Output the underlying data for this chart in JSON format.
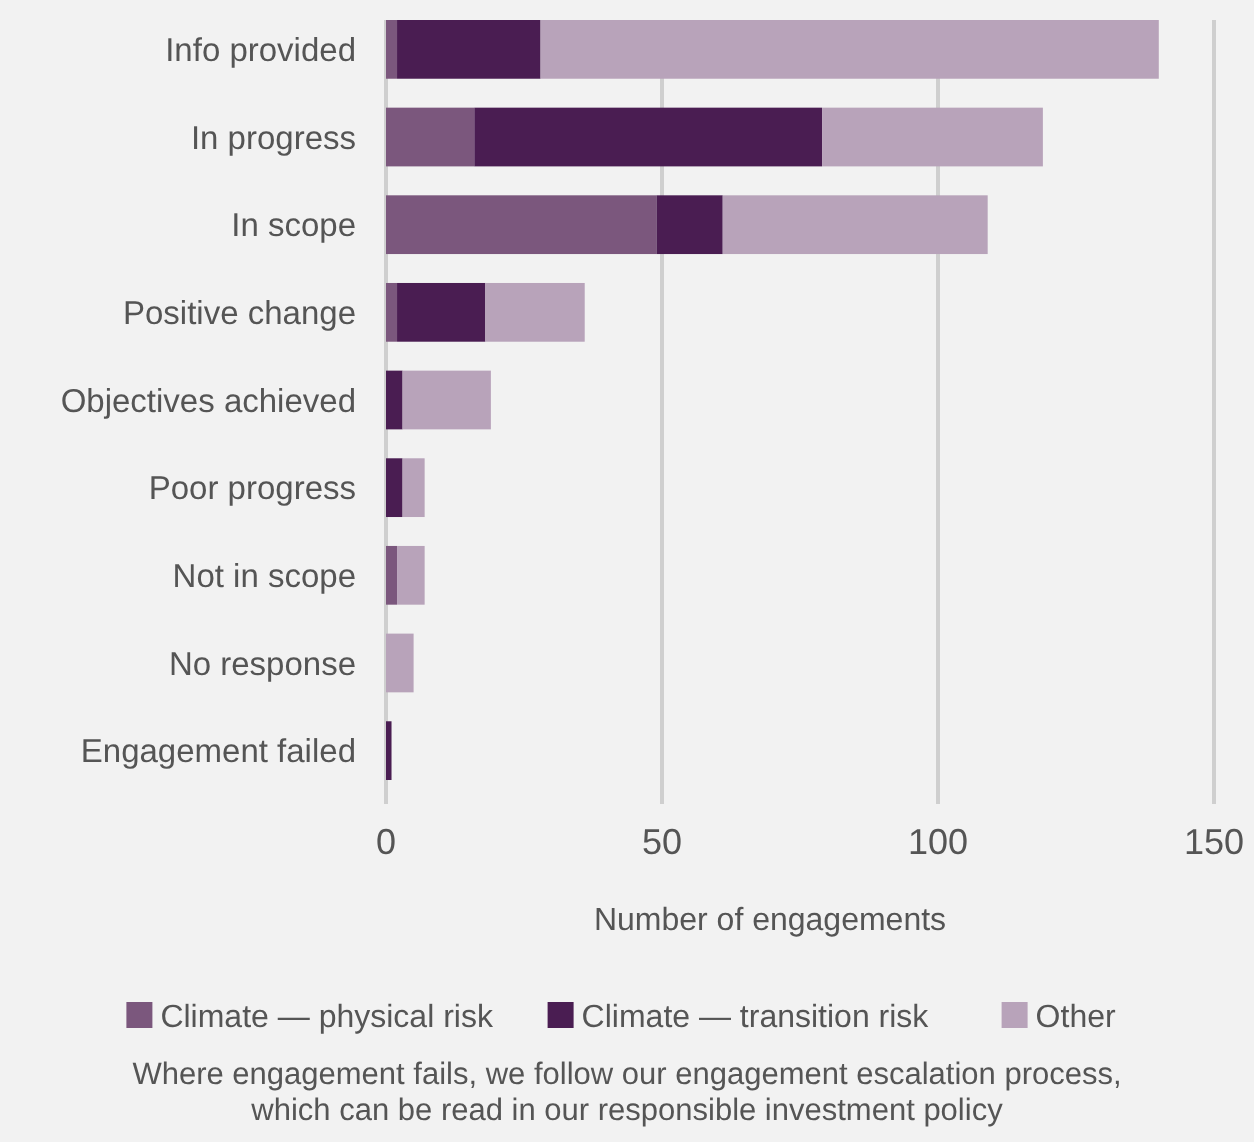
{
  "chart_data": {
    "type": "bar",
    "orientation": "horizontal",
    "stacked": true,
    "categories": [
      "Info provided",
      "In progress",
      "In scope",
      "Positive change",
      "Objectives achieved",
      "Poor progress",
      "Not in scope",
      "No response",
      "Engagement failed"
    ],
    "series": [
      {
        "name": "Climate — physical risk",
        "color": "#7b577d",
        "values": [
          2,
          16,
          49,
          2,
          0,
          0,
          2,
          0,
          0
        ]
      },
      {
        "name": "Climate — transition risk",
        "color": "#4a1d52",
        "values": [
          26,
          63,
          12,
          16,
          3,
          3,
          0,
          0,
          1
        ]
      },
      {
        "name": "Other",
        "color": "#b8a3ba",
        "values": [
          112,
          40,
          48,
          18,
          16,
          4,
          5,
          5,
          0
        ]
      }
    ],
    "xlabel": "Number of engagements",
    "xlim": [
      0,
      150
    ],
    "xticks": [
      0,
      50,
      100,
      150
    ],
    "grid": "x",
    "legend": "bottom",
    "annotations": [
      "Where engagement fails, we follow our engagement escalation process, which can be read in our responsible investment policy"
    ]
  }
}
